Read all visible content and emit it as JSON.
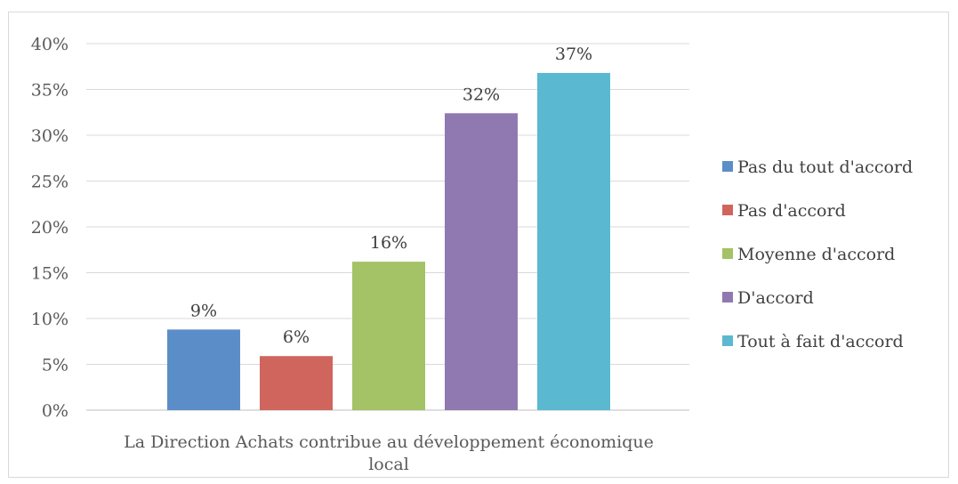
{
  "chart_data": {
    "type": "bar",
    "categories": [
      "La Direction Achats contribue au développement économique local"
    ],
    "category_label_lines": [
      "La Direction Achats contribue au développement économique",
      "local"
    ],
    "series": [
      {
        "name": "Pas du tout d'accord",
        "values": [
          0.088
        ],
        "label": "9%",
        "color": "#5b8ec8"
      },
      {
        "name": "Pas d'accord",
        "values": [
          0.059
        ],
        "label": "6%",
        "color": "#d0655d"
      },
      {
        "name": "Moyenne d'accord",
        "values": [
          0.162
        ],
        "label": "16%",
        "color": "#a4c266"
      },
      {
        "name": "D'accord",
        "values": [
          0.324
        ],
        "label": "32%",
        "color": "#9079b0"
      },
      {
        "name": "Tout à fait d'accord",
        "values": [
          0.368
        ],
        "label": "37%",
        "color": "#5ab9d0"
      }
    ],
    "yticks": [
      "0%",
      "5%",
      "10%",
      "15%",
      "20%",
      "25%",
      "30%",
      "35%",
      "40%"
    ],
    "ylim": [
      0,
      0.4
    ],
    "grid": true,
    "legend_position": "right"
  }
}
